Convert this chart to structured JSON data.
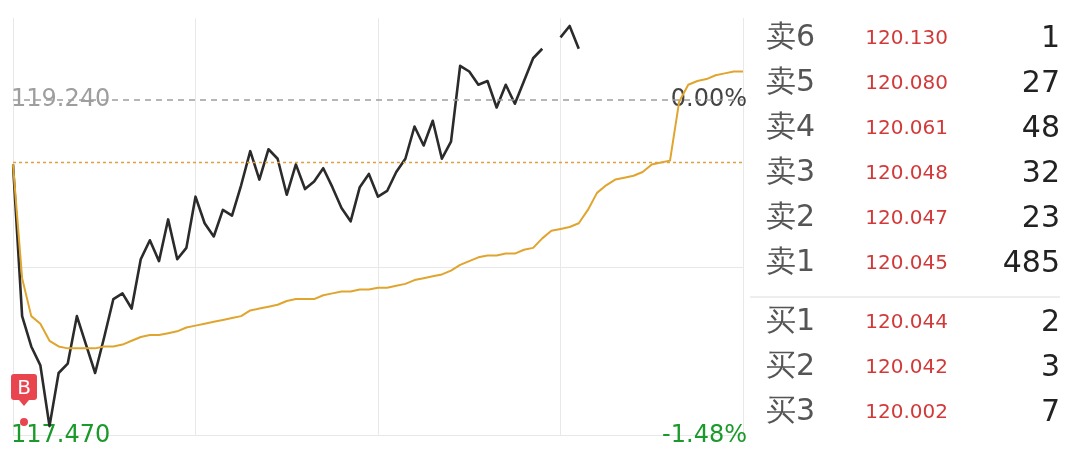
{
  "chart_data": [
    {
      "type": "line",
      "categories": [
        null,
        null,
        null,
        null,
        null,
        null,
        null,
        null,
        null,
        null,
        null,
        null,
        null,
        null,
        null,
        null,
        null,
        null,
        null,
        null,
        null,
        null,
        null,
        null,
        null,
        null,
        null,
        null,
        null,
        null,
        null,
        null,
        null,
        null,
        null,
        null,
        null,
        null,
        null,
        null,
        null,
        null,
        null,
        null,
        null,
        null,
        null,
        null,
        null,
        null,
        null,
        null,
        null,
        null,
        null,
        null,
        null,
        null,
        null,
        null,
        null,
        null,
        null,
        null,
        null,
        null,
        null,
        null,
        null,
        null,
        null,
        null,
        null,
        null,
        null,
        null,
        null,
        null,
        null,
        null,
        null
      ],
      "ylim": [
        117.47,
        119.67
      ],
      "yticks": [
        {
          "value": 117.47,
          "label": "117.470"
        },
        {
          "value": 118.355,
          "label": null
        },
        {
          "value": 119.24,
          "label": "119.240"
        }
      ],
      "y2lim": [
        -1.48,
        0.36
      ],
      "y2ticks": [
        {
          "value": -1.48,
          "label": "-1.48%"
        },
        {
          "value": 0,
          "label": "0.00%"
        }
      ],
      "tick_labels": "y",
      "grid": true,
      "legend": false,
      "series": [
        {
          "color": "#2b2b2b",
          "values": [
            118.9,
            118.1,
            117.94,
            117.84,
            117.52,
            117.8,
            117.85,
            118.1,
            117.95,
            117.8,
            117.99,
            118.19,
            118.22,
            118.14,
            118.4,
            118.5,
            118.39,
            118.61,
            118.4,
            118.46,
            118.73,
            118.59,
            118.52,
            118.66,
            118.63,
            118.79,
            118.97,
            118.82,
            118.98,
            118.93,
            118.74,
            118.9,
            118.77,
            118.81,
            118.88,
            118.78,
            118.67,
            118.6,
            118.78,
            118.85,
            118.73,
            118.76,
            118.86,
            118.93,
            119.1,
            119.0,
            119.13,
            118.93,
            119.02,
            119.42,
            119.39,
            119.32,
            119.34,
            119.2,
            119.32,
            119.22,
            119.34,
            119.46,
            119.51,
            null,
            119.57,
            119.63,
            119.51,
            null,
            null,
            null,
            null,
            null,
            null,
            null,
            null,
            null,
            null,
            null,
            null,
            null,
            null,
            null,
            null,
            null,
            null
          ]
        },
        {
          "color": "#e0a52e",
          "values": [
            118.9,
            118.3,
            118.1,
            118.06,
            117.97,
            117.94,
            117.93,
            117.93,
            117.93,
            117.93,
            117.94,
            117.94,
            117.95,
            117.97,
            117.99,
            118.0,
            118.0,
            118.01,
            118.02,
            118.04,
            118.05,
            118.06,
            118.07,
            118.08,
            118.09,
            118.1,
            118.13,
            118.14,
            118.15,
            118.16,
            118.18,
            118.19,
            118.19,
            118.19,
            118.21,
            118.22,
            118.23,
            118.23,
            118.24,
            118.24,
            118.25,
            118.25,
            118.26,
            118.27,
            118.29,
            118.3,
            118.31,
            118.32,
            118.34,
            118.37,
            118.39,
            118.41,
            118.42,
            118.42,
            118.43,
            118.43,
            118.45,
            118.46,
            118.51,
            118.55,
            118.56,
            118.57,
            118.59,
            118.66,
            118.75,
            118.79,
            118.82,
            118.83,
            118.84,
            118.86,
            118.9,
            118.91,
            118.92,
            119.23,
            119.32,
            119.34,
            119.35,
            119.37,
            119.38,
            119.39,
            119.39
          ]
        }
      ],
      "ref_lines": [
        {
          "axis": "y",
          "value": 119.24,
          "color": "#9e9e9e",
          "line_style": "dashed"
        },
        {
          "axis": "y",
          "value": 118.91,
          "color": "#e0a040",
          "line_style": "dotted"
        }
      ],
      "annotations": [
        "B"
      ]
    },
    {
      "type": "other",
      "annotations": [
        "卖6",
        "120.130",
        "1",
        "卖5",
        "120.080",
        "27",
        "卖4",
        "120.061",
        "48",
        "卖3",
        "120.048",
        "32",
        "卖2",
        "120.047",
        "23",
        "卖1",
        "120.045",
        "485",
        "买1",
        "120.044",
        "2",
        "买2",
        "120.042",
        "3",
        "买3",
        "120.002",
        "7"
      ]
    }
  ]
}
